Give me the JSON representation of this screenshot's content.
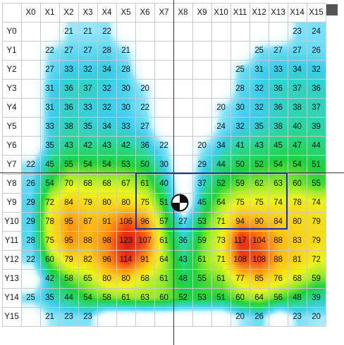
{
  "heatmap": {
    "columns": [
      "X0",
      "X1",
      "X2",
      "X3",
      "X4",
      "X5",
      "X6",
      "X7",
      "X8",
      "X9",
      "X10",
      "X11",
      "X12",
      "X13",
      "X14",
      "X15"
    ],
    "rows": [
      "Y0",
      "Y1",
      "Y2",
      "Y3",
      "Y4",
      "Y5",
      "Y6",
      "Y7",
      "Y8",
      "Y9",
      "Y10",
      "Y11",
      "Y12",
      "Y13",
      "Y14",
      "Y15"
    ],
    "values": [
      [
        "",
        "",
        "21",
        "21",
        "22",
        "",
        "",
        "",
        "",
        "",
        "",
        "",
        "",
        "",
        "23",
        "24"
      ],
      [
        "",
        "22",
        "27",
        "27",
        "28",
        "21",
        "",
        "",
        "",
        "",
        "",
        "",
        "25",
        "27",
        "27",
        "26"
      ],
      [
        "",
        "27",
        "33",
        "32",
        "34",
        "28",
        "",
        "",
        "",
        "",
        "",
        "25",
        "31",
        "33",
        "34",
        "32"
      ],
      [
        "",
        "31",
        "36",
        "37",
        "32",
        "30",
        "20",
        "",
        "",
        "",
        "",
        "28",
        "32",
        "36",
        "37",
        "36"
      ],
      [
        "",
        "31",
        "36",
        "33",
        "32",
        "30",
        "22",
        "",
        "",
        "",
        "20",
        "30",
        "32",
        "36",
        "38",
        "37"
      ],
      [
        "",
        "33",
        "38",
        "35",
        "34",
        "33",
        "27",
        "",
        "",
        "",
        "24",
        "32",
        "35",
        "38",
        "40",
        "39"
      ],
      [
        "",
        "35",
        "43",
        "42",
        "43",
        "42",
        "36",
        "22",
        "",
        "20",
        "34",
        "41",
        "43",
        "45",
        "47",
        "44"
      ],
      [
        "22",
        "45",
        "55",
        "54",
        "54",
        "53",
        "50",
        "30",
        "",
        "29",
        "44",
        "50",
        "52",
        "54",
        "54",
        "51"
      ],
      [
        "26",
        "54",
        "70",
        "68",
        "68",
        "67",
        "61",
        "40",
        "",
        "37",
        "52",
        "59",
        "62",
        "63",
        "60",
        "55"
      ],
      [
        "29",
        "72",
        "84",
        "79",
        "80",
        "80",
        "75",
        "51",
        "",
        "45",
        "64",
        "75",
        "75",
        "74",
        "78",
        "74"
      ],
      [
        "29",
        "78",
        "95",
        "87",
        "91",
        "106",
        "96",
        "57",
        "27",
        "53",
        "71",
        "94",
        "90",
        "84",
        "80",
        "79"
      ],
      [
        "28",
        "75",
        "95",
        "88",
        "98",
        "123",
        "107",
        "61",
        "36",
        "59",
        "73",
        "117",
        "104",
        "88",
        "83",
        "79"
      ],
      [
        "22",
        "60",
        "79",
        "82",
        "96",
        "114",
        "91",
        "64",
        "43",
        "61",
        "71",
        "108",
        "108",
        "88",
        "81",
        "72"
      ],
      [
        "",
        "42",
        "58",
        "65",
        "80",
        "80",
        "68",
        "61",
        "48",
        "55",
        "61",
        "77",
        "85",
        "76",
        "68",
        "59"
      ],
      [
        "25",
        "35",
        "44",
        "54",
        "58",
        "61",
        "63",
        "60",
        "52",
        "53",
        "51",
        "60",
        "64",
        "56",
        "48",
        "39"
      ],
      [
        "",
        "21",
        "23",
        "23",
        "",
        "",
        "",
        "",
        "",
        "",
        "",
        "20",
        "26",
        "",
        "23",
        "20"
      ]
    ]
  },
  "colors": {
    "grid_line": "#c9c9c9",
    "axis_line": "#333333",
    "selection_border": "#1c2f9e",
    "corner_box": "#555555"
  },
  "icons": {
    "center_marker": "center-of-gravity-icon"
  }
}
